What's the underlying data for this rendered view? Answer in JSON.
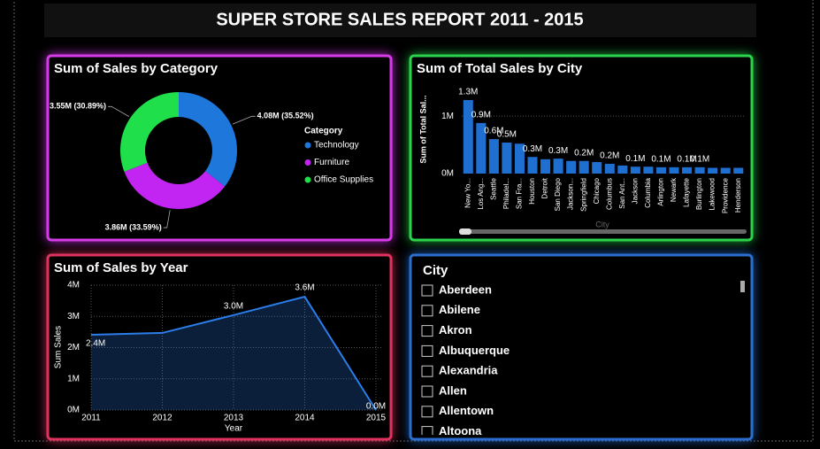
{
  "title": "SUPER STORE SALES REPORT 2011 - 2015",
  "chart_data": [
    {
      "type": "donut",
      "title": "Sum of Sales by Category",
      "legend_title": "Category",
      "categories": [
        "Technology",
        "Furniture",
        "Office Supplies"
      ],
      "values": [
        4080000,
        3860000,
        3550000
      ],
      "value_labels": [
        "4.08M (35.52%)",
        "3.86M (33.59%)",
        "3.55M (30.89%)"
      ],
      "colors": [
        "#1e78dc",
        "#c224f2",
        "#1fe04a"
      ],
      "legend": "right"
    },
    {
      "type": "bar",
      "title": "Sum of Total Sales by City",
      "y_label": "Sum of Total Sal...",
      "x_label": "City",
      "categories": [
        "New Yo...",
        "Los Ang...",
        "Seattle",
        "Philadel...",
        "San Fra...",
        "Houston",
        "Detroit",
        "San Diego",
        "Jackson...",
        "Springfield",
        "Chicago",
        "Columbus",
        "San Ant...",
        "Jackson",
        "Columbia",
        "Arlington",
        "Newark",
        "Lafayette",
        "Burlington",
        "Lakewood",
        "Providence",
        "Henderson"
      ],
      "values": [
        1280000,
        880000,
        600000,
        540000,
        520000,
        290000,
        250000,
        260000,
        220000,
        220000,
        200000,
        170000,
        140000,
        120000,
        120000,
        110000,
        110000,
        110000,
        110000,
        100000,
        100000,
        100000
      ],
      "value_labels": [
        "1.3M",
        "0.9M",
        "0.6M",
        "0.5M",
        null,
        "0.3M",
        null,
        "0.3M",
        null,
        "0.2M",
        null,
        "0.2M",
        null,
        "0.1M",
        null,
        "0.1M",
        null,
        "0.1M",
        "0.1M",
        null,
        null,
        null
      ],
      "color": "#1e6fd0",
      "ylim": [
        0,
        1480000
      ],
      "yticks": [
        {
          "value": 0,
          "label": "0M"
        },
        {
          "value": 1000000,
          "label": "1M"
        }
      ],
      "grid": true
    },
    {
      "type": "area",
      "title": "Sum of Sales by Year",
      "y_label": "Sum Sales",
      "x_label": "Year",
      "x": [
        2011,
        2012,
        2013,
        2014,
        2015
      ],
      "values": [
        2410000,
        2470000,
        3040000,
        3630000,
        0
      ],
      "value_labels": [
        "2.4M",
        null,
        "3.0M",
        "3.6M",
        "0.0M"
      ],
      "color": "#2b7de9",
      "xlim": [
        2011,
        2015
      ],
      "xticks": [
        2011,
        2012,
        2013,
        2014,
        2015
      ],
      "ylim": [
        0,
        4000000
      ],
      "yticks": [
        {
          "value": 0,
          "label": "0M"
        },
        {
          "value": 1000000,
          "label": "1M"
        },
        {
          "value": 2000000,
          "label": "2M"
        },
        {
          "value": 3000000,
          "label": "3M"
        },
        {
          "value": 4000000,
          "label": "4M"
        }
      ],
      "grid": true
    }
  ],
  "slicer": {
    "title": "City",
    "items": [
      "Aberdeen",
      "Abilene",
      "Akron",
      "Albuquerque",
      "Alexandria",
      "Allen",
      "Allentown",
      "Altoona"
    ]
  }
}
